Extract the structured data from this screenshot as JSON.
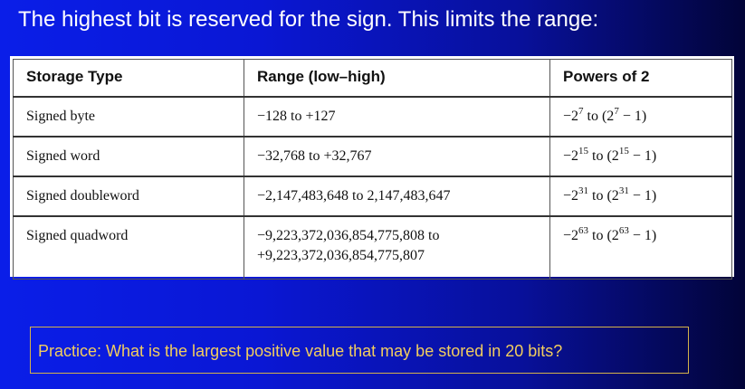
{
  "slide": {
    "title": "The highest bit is reserved for the sign. This limits the range:",
    "practice": "Practice: What is the largest positive value that may be stored in 20 bits?"
  },
  "table": {
    "headers": [
      "Storage Type",
      "Range (low–high)",
      "Powers of 2"
    ],
    "rows": [
      {
        "type": "Signed byte",
        "range_line1": "−128 to +127",
        "range_line2": "",
        "pow_neg": "−2",
        "pow_exp": "7",
        "pow_mid": " to (2",
        "pow_exp2": "7",
        "pow_end": " − 1)"
      },
      {
        "type": "Signed word",
        "range_line1": "−32,768 to +32,767",
        "range_line2": "",
        "pow_neg": "−2",
        "pow_exp": "15",
        "pow_mid": " to (2",
        "pow_exp2": "15",
        "pow_end": " − 1)"
      },
      {
        "type": "Signed doubleword",
        "range_line1": "−2,147,483,648 to 2,147,483,647",
        "range_line2": "",
        "pow_neg": "−2",
        "pow_exp": "31",
        "pow_mid": " to (2",
        "pow_exp2": "31",
        "pow_end": " − 1)"
      },
      {
        "type": "Signed quadword",
        "range_line1": "−9,223,372,036,854,775,808 to",
        "range_line2": "+9,223,372,036,854,775,807",
        "pow_neg": "−2",
        "pow_exp": "63",
        "pow_mid": " to (2",
        "pow_exp2": "63",
        "pow_end": " − 1)"
      }
    ]
  },
  "colors": {
    "background_start": "#0a1ee8",
    "background_end": "#020438",
    "title_text": "#ffffff",
    "practice_text": "#f2cd5e",
    "practice_border": "#d4b24a"
  }
}
